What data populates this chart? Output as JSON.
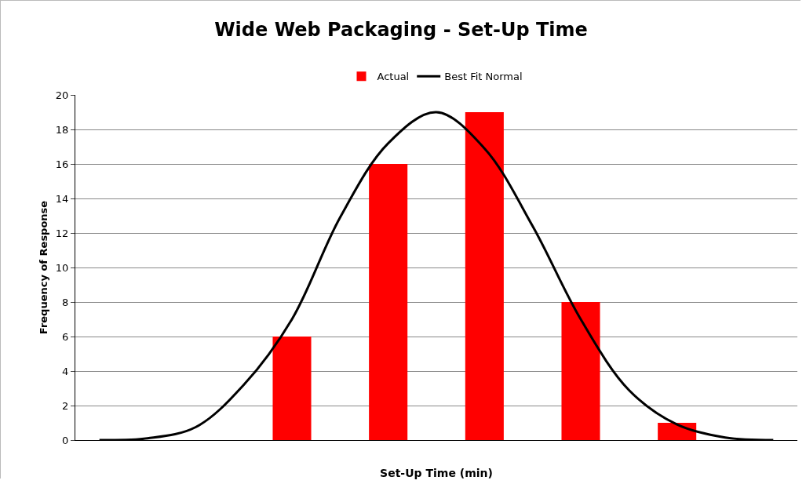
{
  "chart_data": {
    "type": "bar",
    "title": "Wide Web Packaging - Set-Up Time",
    "xlabel": "Set-Up Time (min)",
    "ylabel": "Frequency of Response",
    "categories": [
      null,
      null,
      null,
      null,
      null,
      null,
      null,
      null,
      null,
      null,
      null,
      null,
      null,
      null,
      null
    ],
    "series": [
      {
        "name": "Actual",
        "color": "#ff0000",
        "values": [
          null,
          null,
          null,
          null,
          6,
          null,
          16,
          null,
          19,
          null,
          8,
          null,
          1,
          null,
          null
        ]
      },
      {
        "name": "Best Fit Normal",
        "type": "line",
        "color": "#000000",
        "values": [
          0,
          0.1,
          0.75,
          3.2,
          7,
          12.9,
          17.2,
          19,
          16.9,
          12.4,
          7,
          2.9,
          0.9,
          0.15,
          0
        ]
      }
    ],
    "ylim": [
      0,
      20
    ],
    "yticks": [
      0,
      2,
      4,
      6,
      8,
      10,
      12,
      14,
      16,
      18,
      20
    ],
    "grid": "y",
    "legend": "top",
    "marker": "none",
    "line_style": "solid"
  }
}
